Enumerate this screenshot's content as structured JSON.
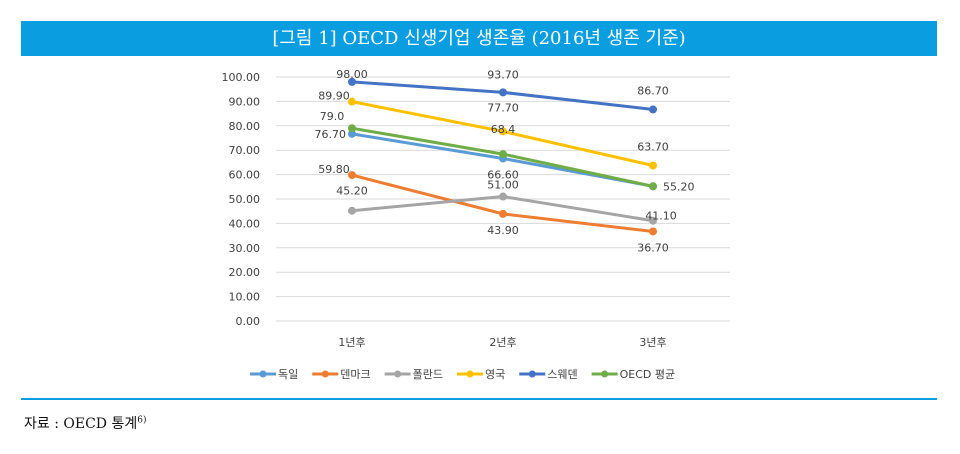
{
  "title": "[그림 1] OECD 신생기업 생존율 (2016년 생존 기준)",
  "source": {
    "text": "자료 : OECD 통계",
    "footnote": "6)"
  },
  "chart_data": {
    "type": "line",
    "categories": [
      "1년후",
      "2년후",
      "3년후"
    ],
    "ylim": [
      0,
      100
    ],
    "yticks": [
      "0.00",
      "10.00",
      "20.00",
      "30.00",
      "40.00",
      "50.00",
      "60.00",
      "70.00",
      "80.00",
      "90.00",
      "100.00"
    ],
    "grid": true,
    "legend": "bottom",
    "series": [
      {
        "name": "독일",
        "color": "#5b9bd5",
        "values": [
          76.7,
          66.6,
          55.2
        ],
        "labels": [
          "76.70",
          "66.60",
          null
        ]
      },
      {
        "name": "덴마크",
        "color": "#ed7d31",
        "values": [
          59.8,
          43.9,
          36.7
        ],
        "labels": [
          "59.80",
          "43.90",
          "36.70"
        ]
      },
      {
        "name": "폴란드",
        "color": "#a5a5a5",
        "values": [
          45.2,
          51.0,
          41.1
        ],
        "labels": [
          "45.20",
          "51.00",
          "41.10"
        ]
      },
      {
        "name": "영국",
        "color": "#ffc000",
        "values": [
          89.9,
          77.7,
          63.7
        ],
        "labels": [
          "89.90",
          "77.70",
          "63.70"
        ]
      },
      {
        "name": "스웨덴",
        "color": "#4472c4",
        "values": [
          98.0,
          93.7,
          86.7
        ],
        "labels": [
          "98.00",
          "93.70",
          "86.70"
        ]
      },
      {
        "name": "OECD 평균",
        "color": "#70ad47",
        "values": [
          79.0,
          68.4,
          55.2
        ],
        "labels": [
          "79.0",
          "68.4",
          "55.20"
        ]
      }
    ]
  }
}
